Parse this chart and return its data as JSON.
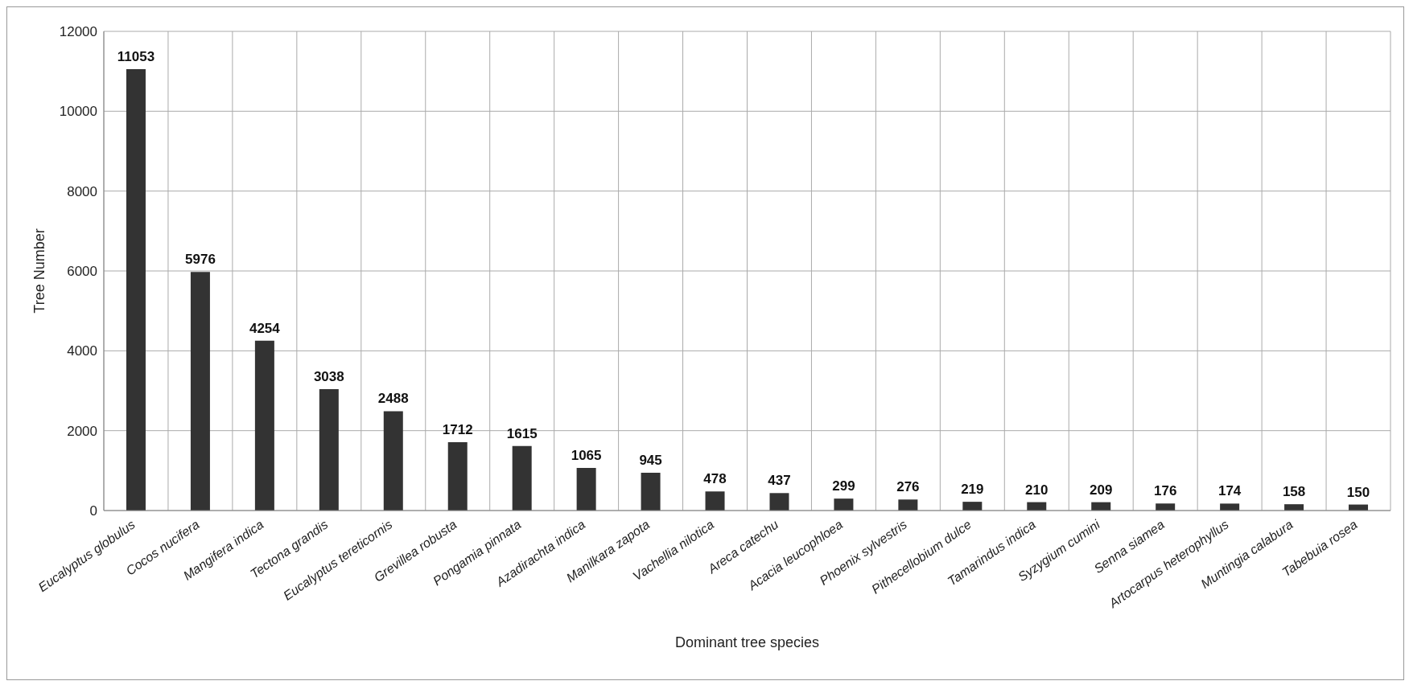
{
  "chart_data": {
    "type": "bar",
    "xlabel": "Dominant tree species",
    "ylabel": "Tree Number",
    "categories": [
      "Eucalyptus globulus",
      "Cocos nucifera",
      "Mangifera indica",
      "Tectona grandis",
      "Eucalyptus tereticornis",
      "Grevillea robusta",
      "Pongamia pinnata",
      "Azadirachta indica",
      "Manilkara zapota",
      "Vachellia nilotica",
      "Areca catechu",
      "Acacia leucophloea",
      "Phoenix sylvestris",
      "Pithecellobium dulce",
      "Tamarindus indica",
      "Syzygium cumini",
      "Senna siamea",
      "Artocarpus heterophyllus",
      "Muntingia calabura",
      "Tabebuia rosea"
    ],
    "values": [
      11053,
      5976,
      4254,
      3038,
      2488,
      1712,
      1615,
      1065,
      945,
      478,
      437,
      299,
      276,
      219,
      210,
      209,
      176,
      174,
      158,
      150
    ],
    "color": "#333333",
    "ylim": [
      0,
      12000
    ],
    "yticks": [
      0,
      2000,
      4000,
      6000,
      8000,
      10000,
      12000
    ],
    "grid": true,
    "data_labels": true
  }
}
